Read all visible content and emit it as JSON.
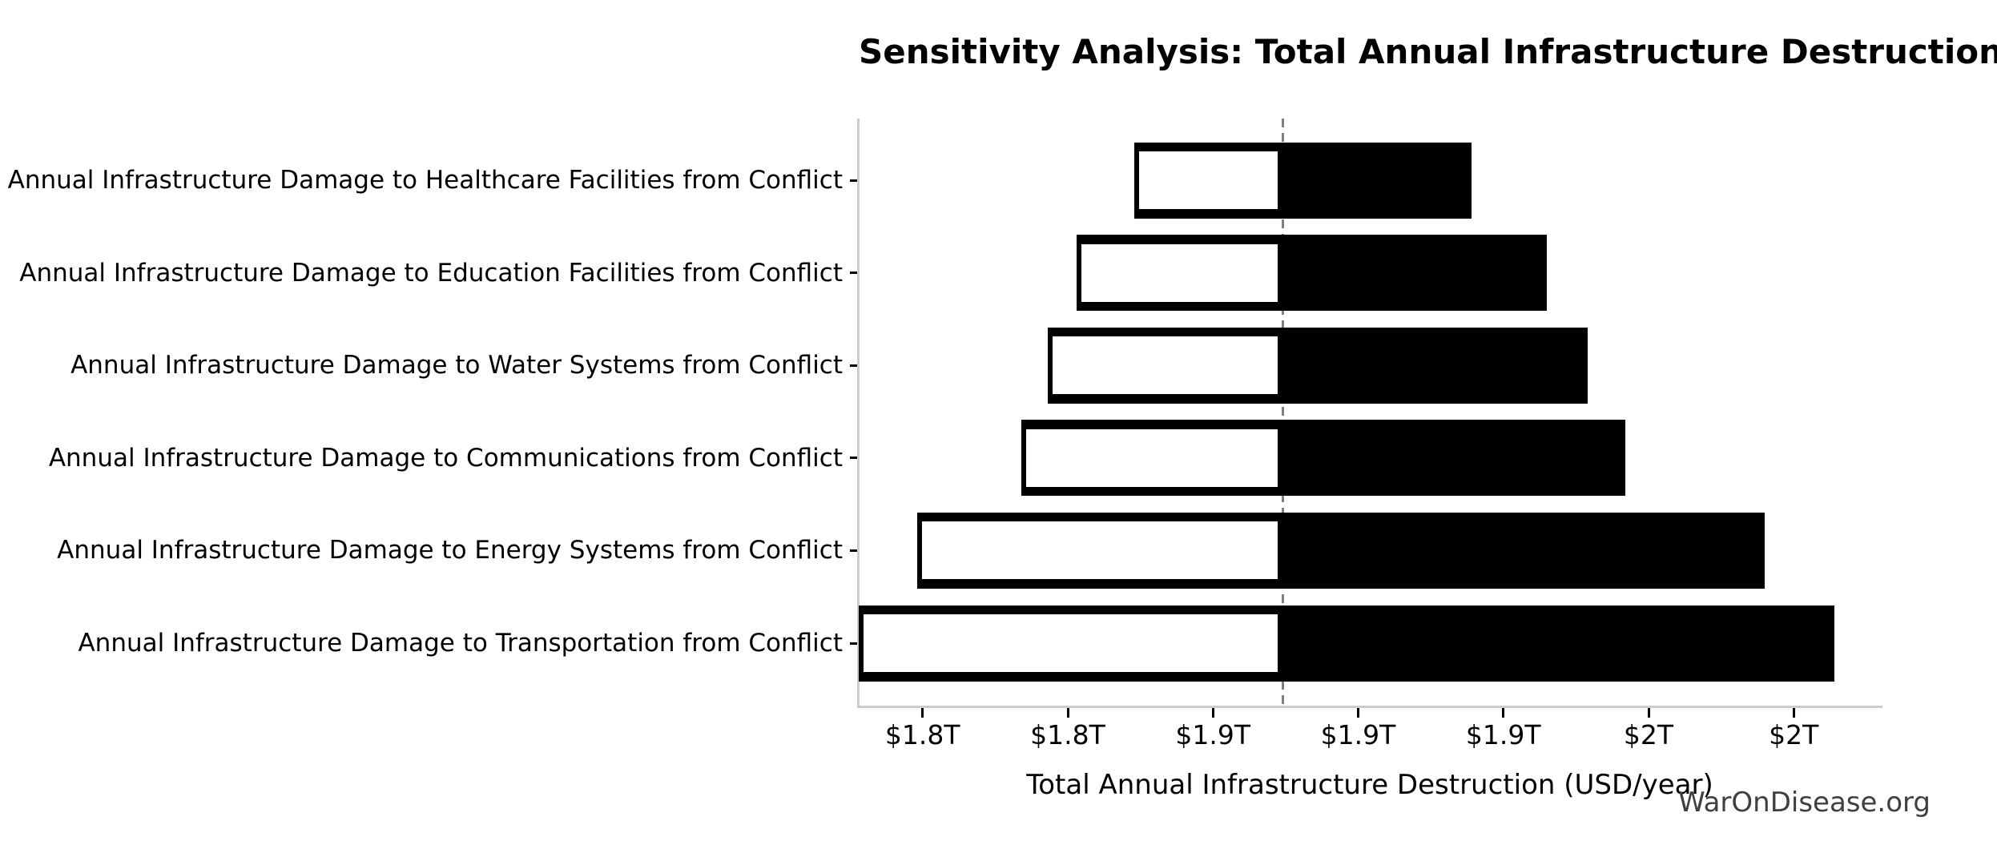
{
  "title": "Sensitivity Analysis: Total Annual Infrastructure Destruction",
  "watermark": "WarOnDisease.org",
  "colors": {
    "bar_fill": "#000000",
    "bar_low_fill": "#ffffff",
    "bar_edge": "#000000",
    "spine": "#cccccc",
    "baseline_dash": "#7f7f7f",
    "text": "#000000",
    "watermark_text": "#3f3f3f",
    "background": "#ffffff"
  },
  "chart_data": {
    "type": "bar",
    "subtype": "tornado-sensitivity",
    "orientation": "horizontal",
    "title": "Sensitivity Analysis: Total Annual Infrastructure Destruction",
    "xlabel": "Total Annual Infrastructure Destruction (USD/year)",
    "ylabel": "",
    "unit": "trillions of USD per year",
    "base_value": 1.874,
    "xlim": [
      1.728,
      2.08
    ],
    "grid": false,
    "legend": null,
    "baseline_style": "dashed-vertical",
    "categories": [
      "Annual Infrastructure Damage to Healthcare Facilities from Conflict",
      "Annual Infrastructure Damage to Education Facilities from Conflict",
      "Annual Infrastructure Damage to Water Systems from Conflict",
      "Annual Infrastructure Damage to Communications from Conflict",
      "Annual Infrastructure Damage to Energy Systems from Conflict",
      "Annual Infrastructure Damage to Transportation from Conflict"
    ],
    "series": [
      {
        "name": "low",
        "values": [
          1.823,
          1.803,
          1.793,
          1.784,
          1.748,
          1.728
        ]
      },
      {
        "name": "high",
        "values": [
          1.939,
          1.965,
          1.979,
          1.992,
          2.04,
          2.064
        ]
      }
    ],
    "xticks": [
      {
        "value": 1.75,
        "label": "$1.8T"
      },
      {
        "value": 1.8,
        "label": "$1.8T"
      },
      {
        "value": 1.85,
        "label": "$1.9T"
      },
      {
        "value": 1.9,
        "label": "$1.9T"
      },
      {
        "value": 1.95,
        "label": "$1.9T"
      },
      {
        "value": 2.0,
        "label": "$2T"
      },
      {
        "value": 2.05,
        "label": "$2T"
      }
    ]
  }
}
